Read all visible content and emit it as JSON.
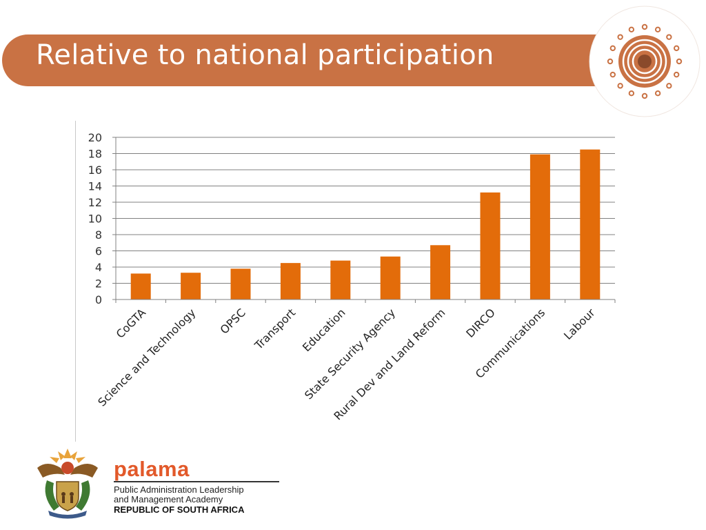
{
  "title": "Relative to national participation",
  "colors": {
    "banner": "#c97244",
    "bar": "#e36c0a",
    "grid": "#808080",
    "palama": "#e2592a"
  },
  "branding": {
    "decor": "concentric-circle-emblem-icon",
    "palama_name": "palama",
    "palama_line1": "Public Administration Leadership",
    "palama_line2": "and Management Academy",
    "country": "REPUBLIC OF SOUTH AFRICA",
    "coat_of_arms": "south-africa-coat-of-arms-icon"
  },
  "chart_data": {
    "type": "bar",
    "categories": [
      "CoGTA",
      "Science and Technology",
      "OPSC",
      "Transport",
      "Education",
      "State Security Agency",
      "Rural Dev and Land Reform",
      "DIRCO",
      "Communications",
      "Labour"
    ],
    "values": [
      3.2,
      3.3,
      3.8,
      4.5,
      4.8,
      5.3,
      6.7,
      13.2,
      17.9,
      18.5
    ],
    "ylim": [
      0,
      20
    ],
    "yticks": [
      0,
      2,
      4,
      6,
      8,
      10,
      12,
      14,
      16,
      18,
      20
    ],
    "grid": true,
    "legend": "none",
    "title": "",
    "xlabel": "",
    "ylabel": ""
  }
}
